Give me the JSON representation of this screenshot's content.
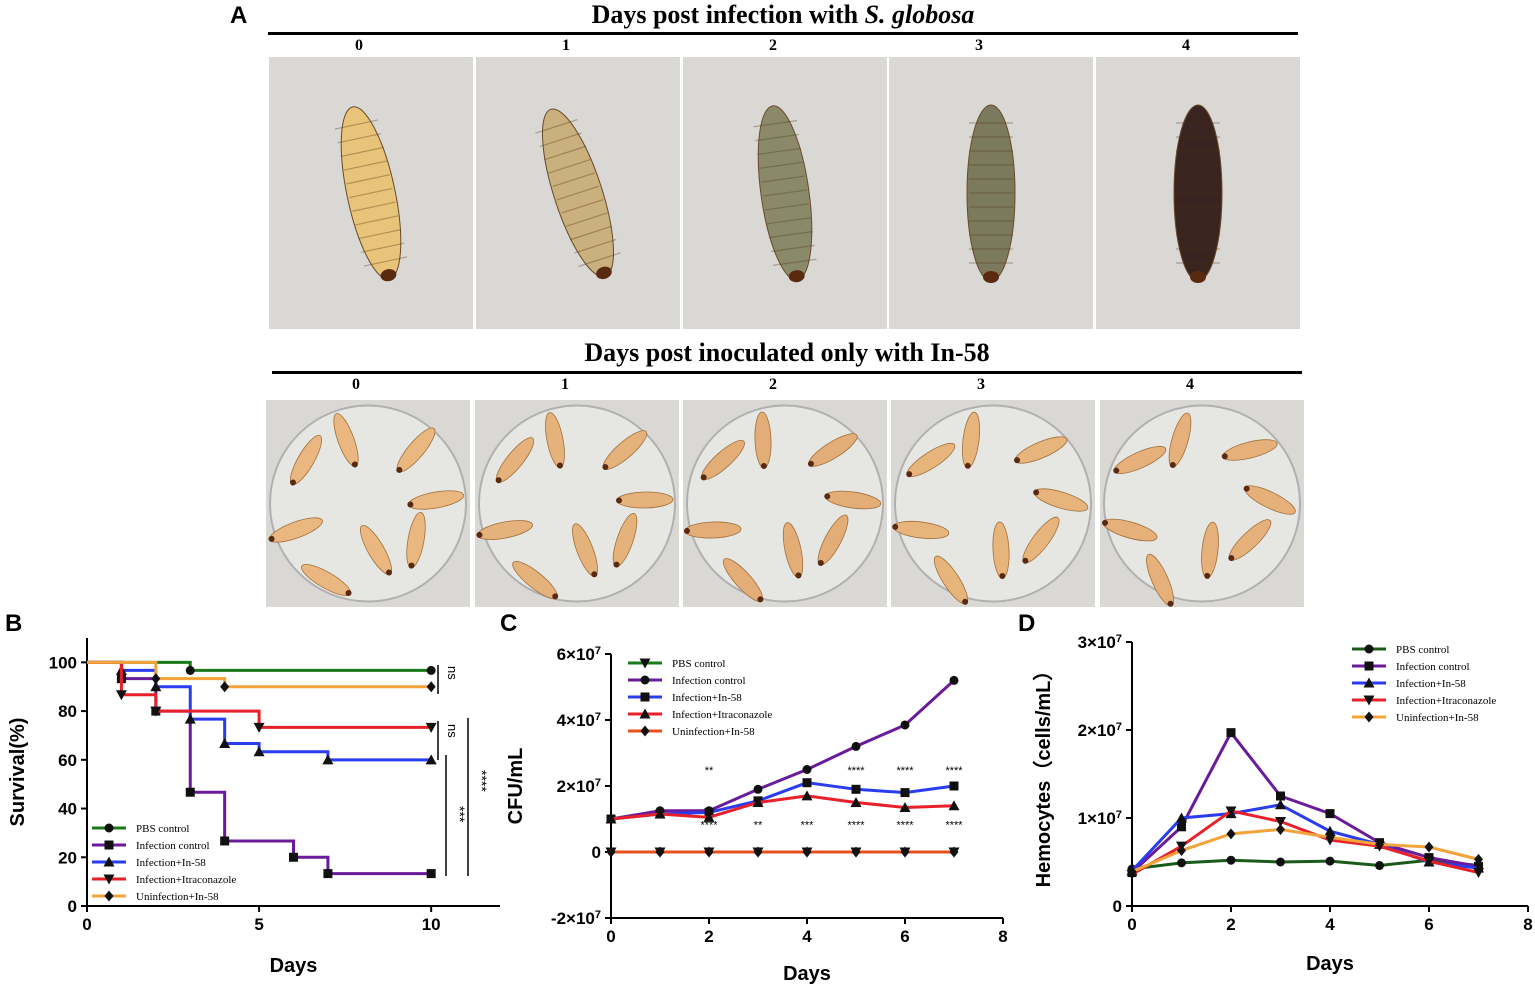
{
  "panel_a": {
    "letter": "A",
    "row1_title": "Days post infection with",
    "row1_species": "S. globosa",
    "row2_title": "Days post inoculated only with In-58",
    "days": [
      "0",
      "1",
      "2",
      "3",
      "4"
    ],
    "row1_colors": [
      "#e8c47a",
      "#c9b07c",
      "#8a8a6a",
      "#7c7a5c",
      "#3a2420"
    ],
    "row2_colors": [
      "#e9b77f",
      "#e6b27b",
      "#e3ad77",
      "#e7b47c",
      "#e5b07a"
    ]
  },
  "chart_data": [
    {
      "panel": "B",
      "type": "line",
      "xlabel": "Days",
      "ylabel": "Survival(%)",
      "xlim": [
        0,
        12
      ],
      "ylim": [
        0,
        110
      ],
      "xticks": [
        "0",
        "5",
        "10"
      ],
      "yticks": [
        "0",
        "20",
        "40",
        "60",
        "80",
        "100"
      ],
      "step": true,
      "legend": "bottom-left",
      "series": [
        {
          "name": "PBS control",
          "color": "#1a7a1a",
          "marker": "circle",
          "x": [
            0,
            3,
            10
          ],
          "y": [
            100,
            96.7,
            96.7
          ]
        },
        {
          "name": "Infection control",
          "color": "#6a1b9a",
          "marker": "square",
          "x": [
            0,
            1,
            2,
            3,
            4,
            6,
            7,
            10
          ],
          "y": [
            100,
            93.3,
            80,
            46.7,
            26.7,
            20,
            13.3,
            13.3
          ]
        },
        {
          "name": "Infection+In-58",
          "color": "#2a3cf0",
          "marker": "triangle-up",
          "x": [
            0,
            1,
            2,
            3,
            4,
            5,
            7,
            10
          ],
          "y": [
            100,
            96.7,
            90,
            76.7,
            66.7,
            63.3,
            60,
            60
          ]
        },
        {
          "name": "Infection+Itraconazole",
          "color": "#e8202a",
          "marker": "triangle-down",
          "x": [
            0,
            1,
            2,
            5,
            10
          ],
          "y": [
            100,
            86.7,
            80,
            73.3,
            73.3
          ]
        },
        {
          "name": "Uninfection+In-58",
          "color": "#f2a33a",
          "marker": "diamond",
          "x": [
            0,
            2,
            4,
            10
          ],
          "y": [
            100,
            93.3,
            90,
            90
          ]
        }
      ],
      "annotations": [
        "ns",
        "ns",
        "***",
        "****"
      ]
    },
    {
      "panel": "C",
      "type": "line",
      "xlabel": "Days",
      "ylabel": "CFU/mL",
      "xlim": [
        0,
        8
      ],
      "ylim": [
        -20000000.0,
        60000000.0
      ],
      "xticks": [
        "0",
        "2",
        "4",
        "6",
        "8"
      ],
      "yticks": [
        {
          "base": "-2×10",
          "exp": "7"
        },
        {
          "base": "0",
          "exp": ""
        },
        {
          "base": "2×10",
          "exp": "7"
        },
        {
          "base": "4×10",
          "exp": "7"
        },
        {
          "base": "6×10",
          "exp": "7"
        }
      ],
      "legend": "top-left",
      "series": [
        {
          "name": "PBS control",
          "color": "#1a7a1a",
          "marker": "triangle-down",
          "x": [
            0,
            1,
            2,
            3,
            4,
            5,
            6,
            7
          ],
          "y": [
            0,
            0,
            0,
            0,
            0,
            0,
            0,
            0
          ]
        },
        {
          "name": "Infection control",
          "color": "#6a1b9a",
          "marker": "circle",
          "x": [
            0,
            1,
            2,
            3,
            4,
            5,
            6,
            7
          ],
          "y": [
            10000000.0,
            12500000.0,
            12500000.0,
            19000000.0,
            25000000.0,
            32000000.0,
            38500000.0,
            52000000.0
          ]
        },
        {
          "name": "Infection+In-58",
          "color": "#2a3cf0",
          "marker": "square",
          "x": [
            0,
            1,
            2,
            3,
            4,
            5,
            6,
            7
          ],
          "y": [
            10000000.0,
            11500000.0,
            12000000.0,
            15500000.0,
            21000000.0,
            19000000.0,
            18000000.0,
            20000000.0
          ]
        },
        {
          "name": "Infection+Itraconazole",
          "color": "#e8202a",
          "marker": "triangle-up",
          "x": [
            0,
            1,
            2,
            3,
            4,
            5,
            6,
            7
          ],
          "y": [
            10000000.0,
            11500000.0,
            10500000.0,
            15000000.0,
            17000000.0,
            15000000.0,
            13500000.0,
            14000000.0
          ]
        },
        {
          "name": "Uninfection+In-58",
          "color": "#e8501a",
          "marker": "diamond",
          "x": [
            0,
            1,
            2,
            3,
            4,
            5,
            6,
            7
          ],
          "y": [
            0,
            0,
            0,
            0,
            0,
            0,
            0,
            0
          ]
        }
      ],
      "annotations": [
        {
          "x": 2,
          "upper": "**",
          "lower": "****"
        },
        {
          "x": 3,
          "upper": "",
          "lower": "**"
        },
        {
          "x": 4,
          "upper": "*",
          "lower": "***"
        },
        {
          "x": 5,
          "upper": "****",
          "lower": "****"
        },
        {
          "x": 6,
          "upper": "****",
          "lower": "****"
        },
        {
          "x": 7,
          "upper": "****",
          "lower": "****"
        }
      ]
    },
    {
      "panel": "D",
      "type": "line",
      "xlabel": "Days",
      "ylabel": "Hemocytes（cells/mL）",
      "xlim": [
        0,
        8
      ],
      "ylim": [
        0,
        30000000.0
      ],
      "xticks": [
        "0",
        "2",
        "4",
        "6",
        "8"
      ],
      "yticks": [
        {
          "base": "0",
          "exp": ""
        },
        {
          "base": "1×10",
          "exp": "7"
        },
        {
          "base": "2×10",
          "exp": "7"
        },
        {
          "base": "3×10",
          "exp": "7"
        }
      ],
      "legend": "top-right",
      "series": [
        {
          "name": "PBS control",
          "color": "#1a5a1a",
          "marker": "circle",
          "x": [
            0,
            1,
            2,
            3,
            4,
            5,
            6,
            7
          ],
          "y": [
            4200000.0,
            4900000.0,
            5200000.0,
            5000000.0,
            5100000.0,
            4600000.0,
            5200000.0,
            4600000.0
          ]
        },
        {
          "name": "Infection control",
          "color": "#6a1b9a",
          "marker": "square",
          "x": [
            0,
            1,
            2,
            3,
            4,
            5,
            6,
            7
          ],
          "y": [
            3800000.0,
            9000000.0,
            19700000.0,
            12500000.0,
            10500000.0,
            7200000.0,
            5500000.0,
            4500000.0
          ]
        },
        {
          "name": "Infection+In-58",
          "color": "#2a3cf0",
          "marker": "triangle-up",
          "x": [
            0,
            1,
            2,
            3,
            4,
            5,
            6,
            7
          ],
          "y": [
            4000000.0,
            10000000.0,
            10500000.0,
            11500000.0,
            8500000.0,
            7000000.0,
            5000000.0,
            4300000.0
          ]
        },
        {
          "name": "Infection+Itraconazole",
          "color": "#e8202a",
          "marker": "triangle-down",
          "x": [
            0,
            1,
            2,
            3,
            4,
            5,
            6,
            7
          ],
          "y": [
            3600000.0,
            6800000.0,
            10800000.0,
            9600000.0,
            7500000.0,
            6800000.0,
            5100000.0,
            3800000.0
          ]
        },
        {
          "name": "Uninfection+In-58",
          "color": "#f2a33a",
          "marker": "diamond",
          "x": [
            0,
            1,
            2,
            3,
            4,
            5,
            6,
            7
          ],
          "y": [
            3900000.0,
            6300000.0,
            8200000.0,
            8700000.0,
            7800000.0,
            7000000.0,
            6700000.0,
            5300000.0
          ]
        }
      ]
    }
  ]
}
